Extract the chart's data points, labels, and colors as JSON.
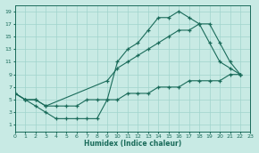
{
  "xlabel": "Humidex (Indice chaleur)",
  "bg_color": "#c8eae4",
  "grid_color": "#a0d4cc",
  "line_color": "#1a6b5a",
  "line1_x": [
    0,
    1,
    2,
    3,
    4,
    5,
    6,
    7,
    8,
    9,
    10,
    11,
    12,
    13,
    14,
    15,
    16,
    17,
    18,
    19,
    20,
    21,
    22
  ],
  "line1_y": [
    6,
    5,
    4,
    3,
    2,
    2,
    2,
    2,
    2,
    5,
    11,
    13,
    14,
    16,
    18,
    18,
    19,
    18,
    17,
    14,
    11,
    10,
    9
  ],
  "line2_x": [
    0,
    1,
    2,
    3,
    9,
    10,
    11,
    12,
    13,
    14,
    15,
    16,
    17,
    18,
    19,
    20,
    21,
    22
  ],
  "line2_y": [
    6,
    5,
    5,
    4,
    8,
    10,
    11,
    12,
    13,
    14,
    15,
    16,
    16,
    17,
    17,
    14,
    11,
    9
  ],
  "line3_x": [
    0,
    1,
    2,
    3,
    4,
    5,
    6,
    7,
    8,
    9,
    10,
    11,
    12,
    13,
    14,
    15,
    16,
    17,
    18,
    19,
    20,
    21,
    22
  ],
  "line3_y": [
    6,
    5,
    5,
    4,
    4,
    4,
    4,
    5,
    5,
    5,
    5,
    6,
    6,
    6,
    7,
    7,
    7,
    8,
    8,
    8,
    8,
    9,
    9
  ],
  "xlim": [
    0,
    23
  ],
  "ylim": [
    0,
    20
  ],
  "xticks": [
    0,
    1,
    2,
    3,
    4,
    5,
    6,
    7,
    8,
    9,
    10,
    11,
    12,
    13,
    14,
    15,
    16,
    17,
    18,
    19,
    20,
    21,
    22,
    23
  ],
  "yticks": [
    1,
    3,
    5,
    7,
    9,
    11,
    13,
    15,
    17,
    19
  ]
}
